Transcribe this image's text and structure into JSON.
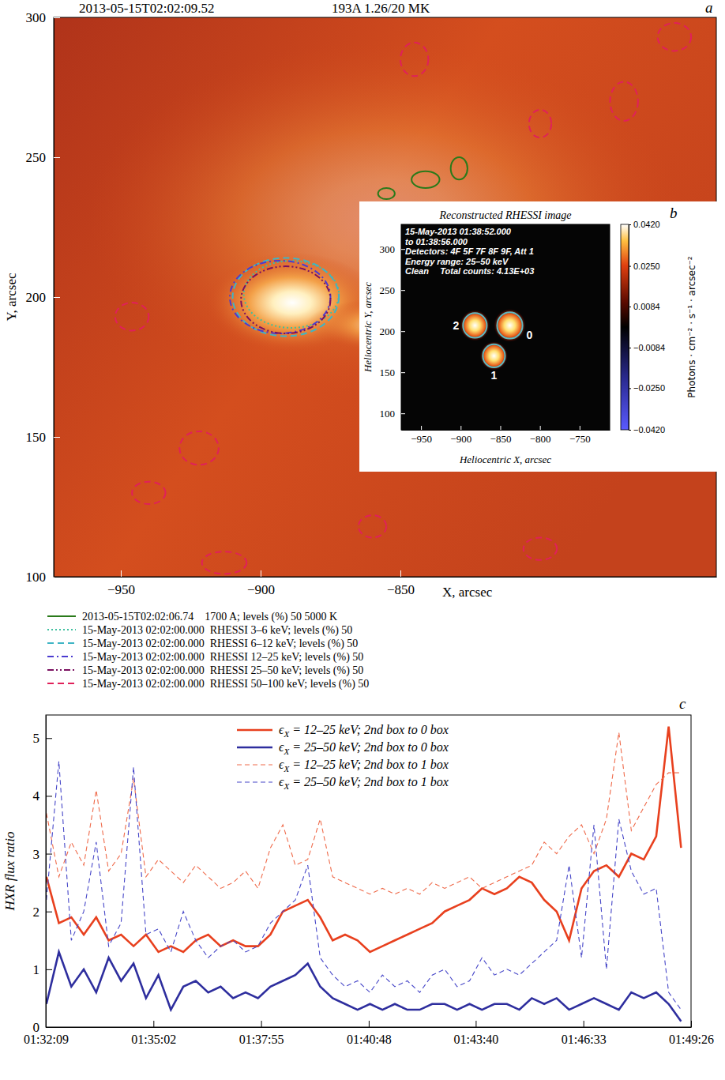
{
  "chart_data": [
    {
      "type": "image",
      "label": "a",
      "title": "2013-05-15T02:02:09.52",
      "subtitle": "193A 1.26/20 MK",
      "x_label": "X, arcsec",
      "y_label": "Y, arcsec",
      "xlim": [
        -974,
        -737
      ],
      "ylim": [
        100,
        300
      ],
      "xticks": [
        -950,
        -900,
        -850
      ],
      "yticks": [
        100,
        150,
        200,
        250,
        300
      ],
      "legend": "bottom",
      "series": [
        {
          "name": "2013-05-15T02:02:06.74    1700 A; levels (%) 50 5000 K",
          "color": "#2a7a1a",
          "line_style": "solid",
          "contours": [
            {
              "x": -841,
              "y": 242,
              "rx": 5,
              "ry": 3
            },
            {
              "x": -829,
              "y": 246,
              "rx": 3,
              "ry": 4
            },
            {
              "x": -855,
              "y": 237,
              "rx": 3,
              "ry": 2
            }
          ]
        },
        {
          "name": "15-May-2013 02:02:00.000  RHESSI 3–6 keV; levels (%) 50",
          "color": "#3fc0a0",
          "line_style": "dotted",
          "contours": [
            {
              "x": -889,
              "y": 201,
              "rx": 17,
              "ry": 12
            }
          ]
        },
        {
          "name": "15-May-2013 02:02:00.000  RHESSI 6–12 keV; levels (%) 50",
          "color": "#3fb5c5",
          "line_style": "dashed",
          "contours": [
            {
              "x": -891,
              "y": 200,
              "rx": 19,
              "ry": 14
            }
          ]
        },
        {
          "name": "15-May-2013 02:02:00.000  RHESSI 12–25 keV; levels (%) 50",
          "color": "#4b3bd0",
          "line_style": "dashdot",
          "contours": [
            {
              "x": -893,
              "y": 200,
              "rx": 18,
              "ry": 13
            }
          ]
        },
        {
          "name": "15-May-2013 02:02:00.000  RHESSI 25–50 keV; levels (%) 50",
          "color": "#7a1060",
          "line_style": "dashdotdot",
          "contours": [
            {
              "x": -891,
              "y": 199,
              "rx": 16,
              "ry": 12
            }
          ]
        },
        {
          "name": "15-May-2013 02:02:00.000  RHESSI 50–100 keV; levels (%) 50",
          "color": "#e0205a",
          "line_style": "dashed",
          "contours": [
            {
              "x": -946,
              "y": 193,
              "rx": 6,
              "ry": 5
            },
            {
              "x": -922,
              "y": 146,
              "rx": 7,
              "ry": 6
            },
            {
              "x": -940,
              "y": 130,
              "rx": 6,
              "ry": 4
            },
            {
              "x": -913,
              "y": 105,
              "rx": 8,
              "ry": 4
            },
            {
              "x": -845,
              "y": 285,
              "rx": 5,
              "ry": 6
            },
            {
              "x": -800,
              "y": 262,
              "rx": 4,
              "ry": 5
            },
            {
              "x": -752,
              "y": 293,
              "rx": 6,
              "ry": 5
            },
            {
              "x": -770,
              "y": 270,
              "rx": 5,
              "ry": 7
            },
            {
              "x": -860,
              "y": 118,
              "rx": 5,
              "ry": 4
            },
            {
              "x": -800,
              "y": 110,
              "rx": 6,
              "ry": 4
            }
          ]
        }
      ]
    },
    {
      "type": "image",
      "label": "b",
      "title": "Reconstructed RHESSI image",
      "x_label": "Heliocentric X, arcsec",
      "y_label": "Heliocentric Y, arcsec",
      "xlim": [
        -975,
        -712
      ],
      "ylim": [
        80,
        330
      ],
      "xticks": [
        -950,
        -900,
        -850,
        -800,
        -750
      ],
      "yticks": [
        100,
        150,
        200,
        250,
        300
      ],
      "annotations": [
        "15-May-2013 01:38:52.000",
        "to 01:38:56.000",
        "Detectors: 4F 5F 7F 8F 9F, Att 1",
        "Energy range: 25–50 keV",
        "Clean",
        "Total counts: 4.13E+03"
      ],
      "sources": [
        {
          "label": "2",
          "x": -882,
          "y": 207,
          "r": 15
        },
        {
          "label": "0",
          "x": -838,
          "y": 207,
          "r": 16
        },
        {
          "label": "1",
          "x": -858,
          "y": 170,
          "r": 14
        }
      ],
      "colorbar": {
        "range": [
          -0.042,
          0.042
        ],
        "ticks": [
          {
            "value": 0.042,
            "label": "0.0420"
          },
          {
            "value": 0.025,
            "label": "0.0250"
          },
          {
            "value": 0.0084,
            "label": "0.0084"
          },
          {
            "value": -0.0084,
            "label": "−0.0084"
          },
          {
            "value": -0.025,
            "label": "−0.0250"
          },
          {
            "value": -0.042,
            "label": "−0.0420"
          }
        ],
        "label": "Photons · cm⁻² · s⁻¹ · arcsec⁻²"
      }
    },
    {
      "type": "line",
      "label": "c",
      "y_label": "HXR flux ratio",
      "x": [
        "01:32:10",
        "01:32:30",
        "01:32:50",
        "01:33:10",
        "01:33:30",
        "01:33:50",
        "01:34:10",
        "01:34:30",
        "01:34:50",
        "01:35:10",
        "01:35:30",
        "01:35:50",
        "01:36:10",
        "01:36:30",
        "01:36:50",
        "01:37:10",
        "01:37:30",
        "01:37:50",
        "01:38:10",
        "01:38:30",
        "01:38:50",
        "01:39:10",
        "01:39:30",
        "01:39:50",
        "01:40:10",
        "01:40:30",
        "01:40:50",
        "01:41:10",
        "01:41:30",
        "01:41:50",
        "01:42:10",
        "01:42:30",
        "01:42:50",
        "01:43:10",
        "01:43:30",
        "01:43:50",
        "01:44:10",
        "01:44:30",
        "01:44:50",
        "01:45:10",
        "01:45:30",
        "01:45:50",
        "01:46:10",
        "01:46:30",
        "01:46:50",
        "01:47:10",
        "01:47:30",
        "01:47:50",
        "01:48:10",
        "01:48:30",
        "01:48:50",
        "01:49:10"
      ],
      "xlim": [
        "01:32:09",
        "01:49:26"
      ],
      "xticks": [
        "01:32:09",
        "01:35:02",
        "01:37:55",
        "01:40:48",
        "01:43:40",
        "01:46:33",
        "01:49:26"
      ],
      "ylim": [
        0,
        5.4
      ],
      "yticks": [
        0,
        1,
        2,
        3,
        4,
        5
      ],
      "legend": "top",
      "series": [
        {
          "name": "ϵX = 12–25 keV; 2nd box to 0 box",
          "color": "#e8401e",
          "line_style": "solid",
          "values": [
            2.6,
            1.8,
            1.9,
            1.6,
            1.9,
            1.5,
            1.6,
            1.4,
            1.6,
            1.3,
            1.4,
            1.3,
            1.5,
            1.6,
            1.4,
            1.5,
            1.4,
            1.4,
            1.6,
            2.0,
            2.1,
            2.2,
            1.9,
            1.5,
            1.6,
            1.5,
            1.3,
            1.4,
            1.5,
            1.6,
            1.7,
            1.8,
            2.0,
            2.1,
            2.2,
            2.4,
            2.3,
            2.4,
            2.6,
            2.5,
            2.2,
            2.0,
            1.5,
            2.4,
            2.7,
            2.8,
            2.6,
            3.0,
            2.9,
            3.3,
            5.2,
            3.1
          ]
        },
        {
          "name": "ϵX = 25–50 keV; 2nd box to 0 box",
          "color": "#2e2e9e",
          "line_style": "solid",
          "values": [
            0.4,
            1.3,
            0.7,
            1.0,
            0.6,
            1.2,
            0.8,
            1.1,
            0.5,
            0.9,
            0.3,
            0.7,
            0.8,
            0.6,
            0.7,
            0.5,
            0.6,
            0.5,
            0.7,
            0.8,
            0.9,
            1.1,
            0.7,
            0.5,
            0.4,
            0.3,
            0.4,
            0.3,
            0.4,
            0.3,
            0.3,
            0.4,
            0.4,
            0.3,
            0.4,
            0.3,
            0.4,
            0.4,
            0.3,
            0.5,
            0.4,
            0.5,
            0.3,
            0.4,
            0.5,
            0.4,
            0.3,
            0.6,
            0.5,
            0.6,
            0.4,
            0.1
          ]
        },
        {
          "name": "ϵX = 12–25 keV; 2nd box to 1 box",
          "color": "#ef6a4a",
          "line_style": "dashed",
          "values": [
            3.7,
            2.6,
            3.2,
            2.8,
            4.1,
            2.7,
            3.0,
            4.3,
            2.6,
            2.9,
            2.7,
            2.5,
            2.8,
            2.6,
            2.4,
            2.5,
            2.7,
            2.4,
            3.1,
            3.5,
            2.8,
            2.9,
            3.6,
            2.6,
            2.5,
            2.4,
            2.3,
            2.4,
            2.3,
            2.4,
            2.3,
            2.5,
            2.4,
            2.5,
            2.6,
            2.4,
            2.5,
            2.6,
            2.7,
            2.8,
            3.2,
            3.0,
            3.3,
            3.5,
            3.0,
            3.6,
            5.1,
            3.4,
            3.8,
            4.2,
            4.4,
            4.4
          ]
        },
        {
          "name": "ϵX = 25–50 keV; 2nd box to 1 box",
          "color": "#4646c8",
          "line_style": "dashed",
          "values": [
            2.2,
            4.6,
            1.5,
            2.0,
            3.2,
            1.4,
            1.8,
            4.5,
            1.6,
            1.7,
            1.3,
            2.0,
            1.5,
            1.2,
            1.4,
            1.5,
            1.3,
            1.4,
            1.8,
            2.0,
            2.2,
            2.8,
            1.2,
            0.9,
            0.7,
            0.8,
            0.6,
            0.9,
            0.7,
            0.8,
            0.6,
            0.9,
            1.0,
            0.7,
            0.8,
            1.2,
            0.9,
            1.0,
            0.9,
            1.1,
            1.3,
            1.5,
            2.8,
            1.2,
            3.5,
            1.0,
            3.6,
            2.7,
            2.3,
            2.4,
            0.6,
            0.3
          ]
        }
      ]
    }
  ]
}
